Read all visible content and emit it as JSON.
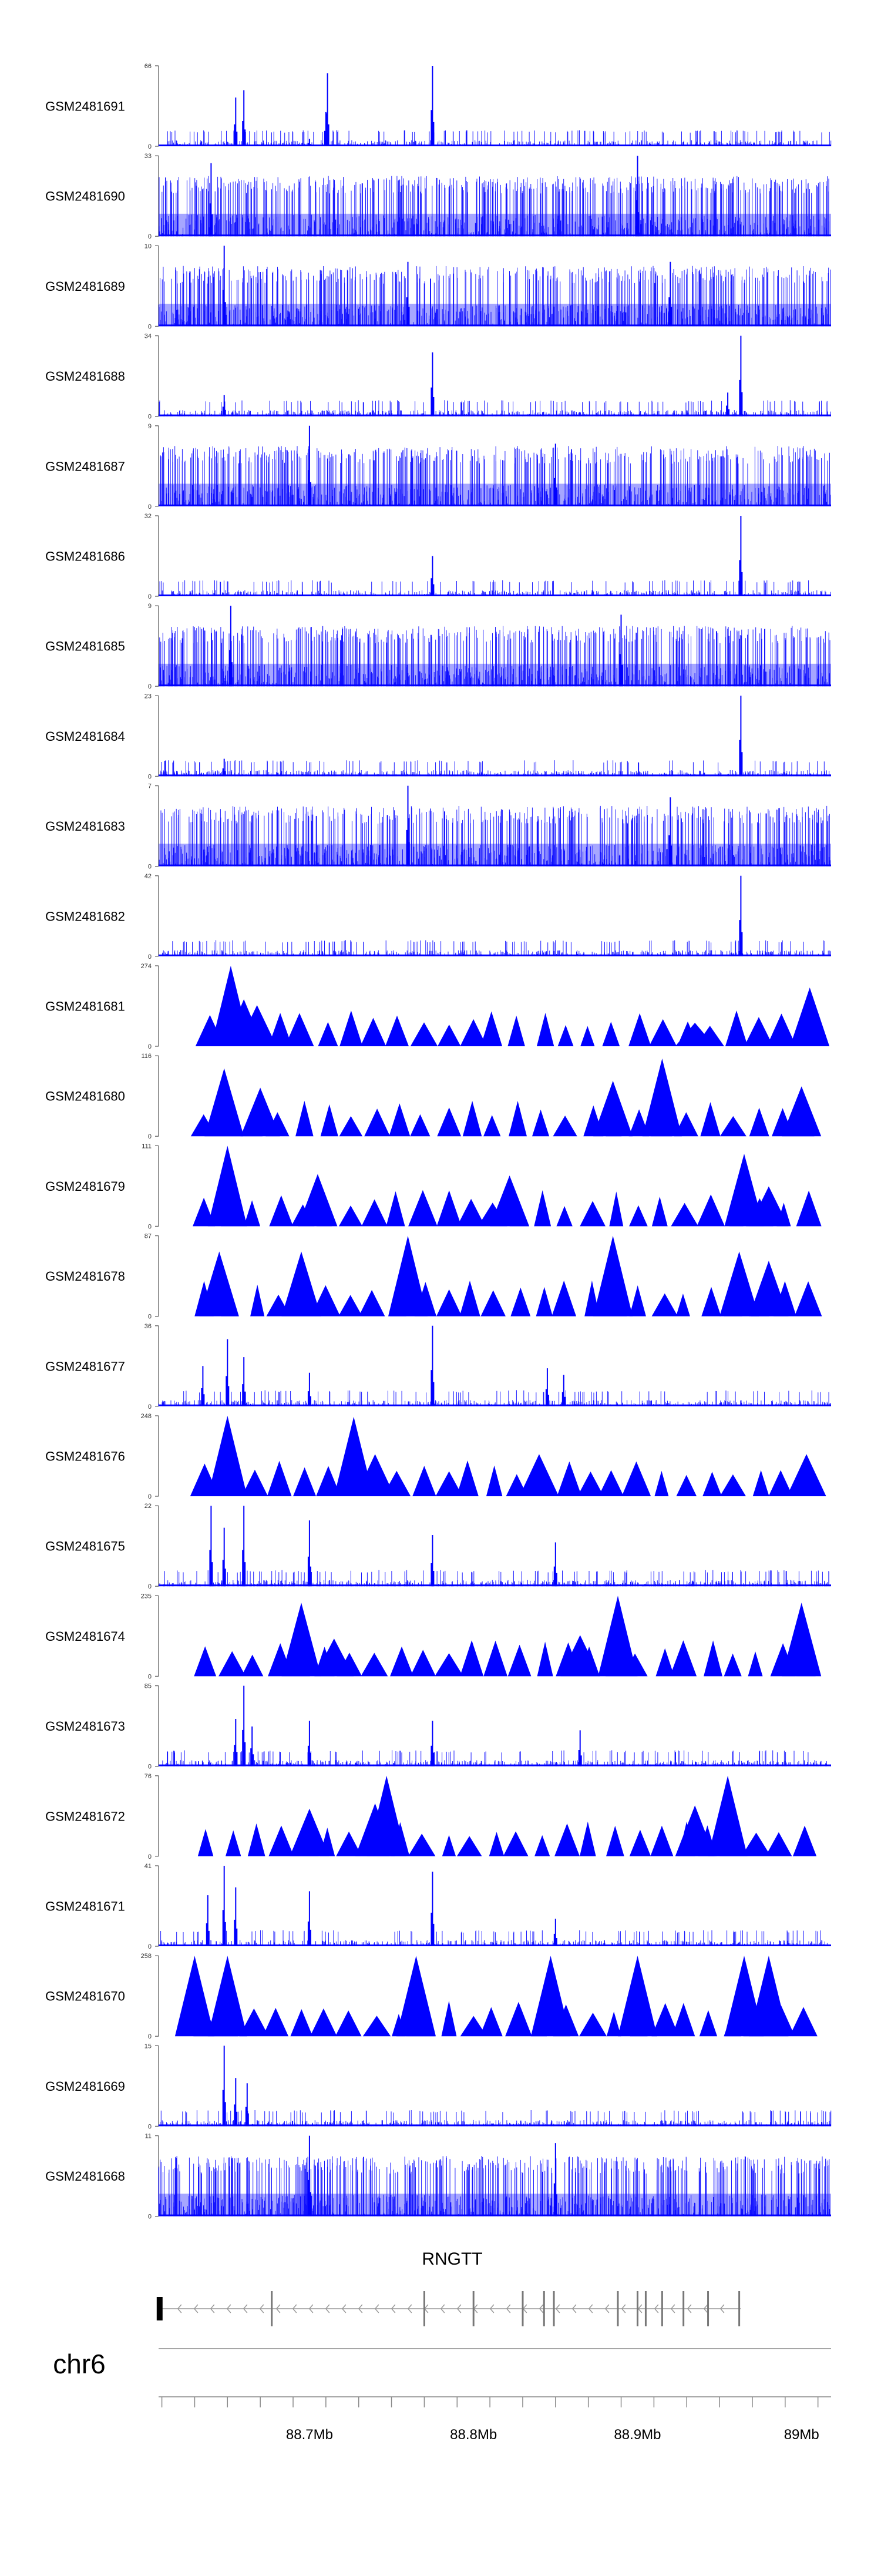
{
  "chart_data": {
    "type": "area",
    "track_color": "#0000ff",
    "chromosome": "chr6",
    "x_ticks": [
      {
        "pos": 88.7,
        "label": "88.7Mb"
      },
      {
        "pos": 88.8,
        "label": "88.8Mb"
      },
      {
        "pos": 88.9,
        "label": "88.9Mb"
      },
      {
        "pos": 89.0,
        "label": "89Mb"
      }
    ],
    "xlim": [
      88.608,
      89.018
    ],
    "gene": {
      "name": "RNGTT",
      "start": 88.609,
      "end": 88.963,
      "exons": [
        88.609,
        88.677,
        88.77,
        88.8,
        88.83,
        88.843,
        88.849,
        88.888,
        88.9,
        88.905,
        88.915,
        88.928,
        88.943,
        88.962
      ]
    },
    "tracks": [
      {
        "name": "GSM2481691",
        "ymax": 66,
        "style": "fine",
        "peaks": [
          {
            "x": 88.655,
            "v": 40
          },
          {
            "x": 88.66,
            "v": 46
          },
          {
            "x": 88.71,
            "v": 28
          },
          {
            "x": 88.711,
            "v": 60
          },
          {
            "x": 88.775,
            "v": 66
          },
          {
            "x": 88.7,
            "v": 6
          }
        ]
      },
      {
        "name": "GSM2481690",
        "ymax": 33,
        "style": "dense",
        "peaks": [
          {
            "x": 88.64,
            "v": 30
          },
          {
            "x": 88.9,
            "v": 33
          }
        ]
      },
      {
        "name": "GSM2481689",
        "ymax": 10,
        "style": "dense",
        "peaks": [
          {
            "x": 88.648,
            "v": 10
          },
          {
            "x": 88.76,
            "v": 8
          },
          {
            "x": 88.92,
            "v": 8
          }
        ]
      },
      {
        "name": "GSM2481688",
        "ymax": 34,
        "style": "fine",
        "peaks": [
          {
            "x": 88.775,
            "v": 27
          },
          {
            "x": 88.963,
            "v": 34
          },
          {
            "x": 88.648,
            "v": 9
          },
          {
            "x": 88.955,
            "v": 10
          }
        ]
      },
      {
        "name": "GSM2481687",
        "ymax": 9,
        "style": "dense",
        "peaks": [
          {
            "x": 88.7,
            "v": 9
          },
          {
            "x": 88.85,
            "v": 7
          }
        ]
      },
      {
        "name": "GSM2481686",
        "ymax": 32,
        "style": "fine",
        "peaks": [
          {
            "x": 88.775,
            "v": 16
          },
          {
            "x": 88.963,
            "v": 32
          }
        ]
      },
      {
        "name": "GSM2481685",
        "ymax": 9,
        "style": "dense",
        "peaks": [
          {
            "x": 88.652,
            "v": 9
          },
          {
            "x": 88.89,
            "v": 8
          }
        ]
      },
      {
        "name": "GSM2481684",
        "ymax": 23,
        "style": "fine",
        "peaks": [
          {
            "x": 88.963,
            "v": 23
          },
          {
            "x": 88.648,
            "v": 5
          }
        ]
      },
      {
        "name": "GSM2481683",
        "ymax": 7,
        "style": "dense",
        "peaks": [
          {
            "x": 88.76,
            "v": 7
          },
          {
            "x": 88.92,
            "v": 6
          }
        ]
      },
      {
        "name": "GSM2481682",
        "ymax": 42,
        "style": "fine",
        "peaks": [
          {
            "x": 88.963,
            "v": 42
          }
        ]
      },
      {
        "name": "GSM2481681",
        "ymax": 274,
        "style": "tri",
        "peaks": [
          {
            "x": 88.652,
            "v": 274
          },
          {
            "x": 88.66,
            "v": 160
          },
          {
            "x": 88.668,
            "v": 140
          },
          {
            "x": 88.935,
            "v": 80
          },
          {
            "x": 89.005,
            "v": 200
          }
        ]
      },
      {
        "name": "GSM2481680",
        "ymax": 116,
        "style": "tri",
        "peaks": [
          {
            "x": 88.648,
            "v": 98
          },
          {
            "x": 88.67,
            "v": 70
          },
          {
            "x": 88.885,
            "v": 80
          },
          {
            "x": 88.915,
            "v": 112
          },
          {
            "x": 89.0,
            "v": 72
          }
        ]
      },
      {
        "name": "GSM2481679",
        "ymax": 111,
        "style": "tri",
        "peaks": [
          {
            "x": 88.65,
            "v": 111
          },
          {
            "x": 88.705,
            "v": 72
          },
          {
            "x": 88.822,
            "v": 70
          },
          {
            "x": 88.965,
            "v": 100
          },
          {
            "x": 88.98,
            "v": 55
          }
        ]
      },
      {
        "name": "GSM2481678",
        "ymax": 87,
        "style": "tri",
        "peaks": [
          {
            "x": 88.645,
            "v": 70
          },
          {
            "x": 88.695,
            "v": 70
          },
          {
            "x": 88.76,
            "v": 87
          },
          {
            "x": 88.885,
            "v": 87
          },
          {
            "x": 88.962,
            "v": 70
          },
          {
            "x": 88.98,
            "v": 60
          }
        ]
      },
      {
        "name": "GSM2481677",
        "ymax": 36,
        "style": "fine",
        "peaks": [
          {
            "x": 88.65,
            "v": 30
          },
          {
            "x": 88.635,
            "v": 18
          },
          {
            "x": 88.66,
            "v": 22
          },
          {
            "x": 88.7,
            "v": 15
          },
          {
            "x": 88.775,
            "v": 36
          },
          {
            "x": 88.845,
            "v": 17
          },
          {
            "x": 88.855,
            "v": 14
          }
        ]
      },
      {
        "name": "GSM2481676",
        "ymax": 248,
        "style": "tri",
        "peaks": [
          {
            "x": 88.65,
            "v": 248
          },
          {
            "x": 88.727,
            "v": 245
          },
          {
            "x": 88.74,
            "v": 130
          },
          {
            "x": 88.84,
            "v": 130
          },
          {
            "x": 89.003,
            "v": 130
          }
        ]
      },
      {
        "name": "GSM2481675",
        "ymax": 22,
        "style": "fine",
        "peaks": [
          {
            "x": 88.64,
            "v": 22
          },
          {
            "x": 88.66,
            "v": 22
          },
          {
            "x": 88.648,
            "v": 16
          },
          {
            "x": 88.7,
            "v": 18
          },
          {
            "x": 88.775,
            "v": 14
          },
          {
            "x": 88.85,
            "v": 12
          }
        ]
      },
      {
        "name": "GSM2481674",
        "ymax": 235,
        "style": "tri",
        "peaks": [
          {
            "x": 88.695,
            "v": 215
          },
          {
            "x": 88.888,
            "v": 235
          },
          {
            "x": 89.0,
            "v": 215
          },
          {
            "x": 88.715,
            "v": 110
          },
          {
            "x": 88.865,
            "v": 120
          }
        ]
      },
      {
        "name": "GSM2481673",
        "ymax": 85,
        "style": "fine",
        "peaks": [
          {
            "x": 88.655,
            "v": 50
          },
          {
            "x": 88.66,
            "v": 85
          },
          {
            "x": 88.665,
            "v": 42
          },
          {
            "x": 88.7,
            "v": 48
          },
          {
            "x": 88.775,
            "v": 48
          },
          {
            "x": 88.865,
            "v": 38
          }
        ]
      },
      {
        "name": "GSM2481672",
        "ymax": 76,
        "style": "tri",
        "peaks": [
          {
            "x": 88.747,
            "v": 76
          },
          {
            "x": 88.74,
            "v": 50
          },
          {
            "x": 88.955,
            "v": 76
          },
          {
            "x": 88.935,
            "v": 48
          },
          {
            "x": 88.7,
            "v": 45
          }
        ]
      },
      {
        "name": "GSM2481671",
        "ymax": 41,
        "style": "fine",
        "peaks": [
          {
            "x": 88.648,
            "v": 41
          },
          {
            "x": 88.638,
            "v": 26
          },
          {
            "x": 88.655,
            "v": 30
          },
          {
            "x": 88.7,
            "v": 28
          },
          {
            "x": 88.775,
            "v": 38
          },
          {
            "x": 88.85,
            "v": 14
          }
        ]
      },
      {
        "name": "GSM2481670",
        "ymax": 258,
        "style": "tri",
        "peaks": [
          {
            "x": 88.63,
            "v": 258
          },
          {
            "x": 88.65,
            "v": 258
          },
          {
            "x": 88.765,
            "v": 258
          },
          {
            "x": 88.847,
            "v": 258
          },
          {
            "x": 88.9,
            "v": 258
          },
          {
            "x": 88.965,
            "v": 258
          },
          {
            "x": 88.98,
            "v": 258
          }
        ]
      },
      {
        "name": "GSM2481669",
        "ymax": 15,
        "style": "fine",
        "peaks": [
          {
            "x": 88.648,
            "v": 15
          },
          {
            "x": 88.655,
            "v": 9
          },
          {
            "x": 88.662,
            "v": 8
          }
        ]
      },
      {
        "name": "GSM2481668",
        "ymax": 11,
        "style": "dense",
        "peaks": [
          {
            "x": 88.7,
            "v": 11
          },
          {
            "x": 88.85,
            "v": 10
          }
        ]
      }
    ]
  }
}
